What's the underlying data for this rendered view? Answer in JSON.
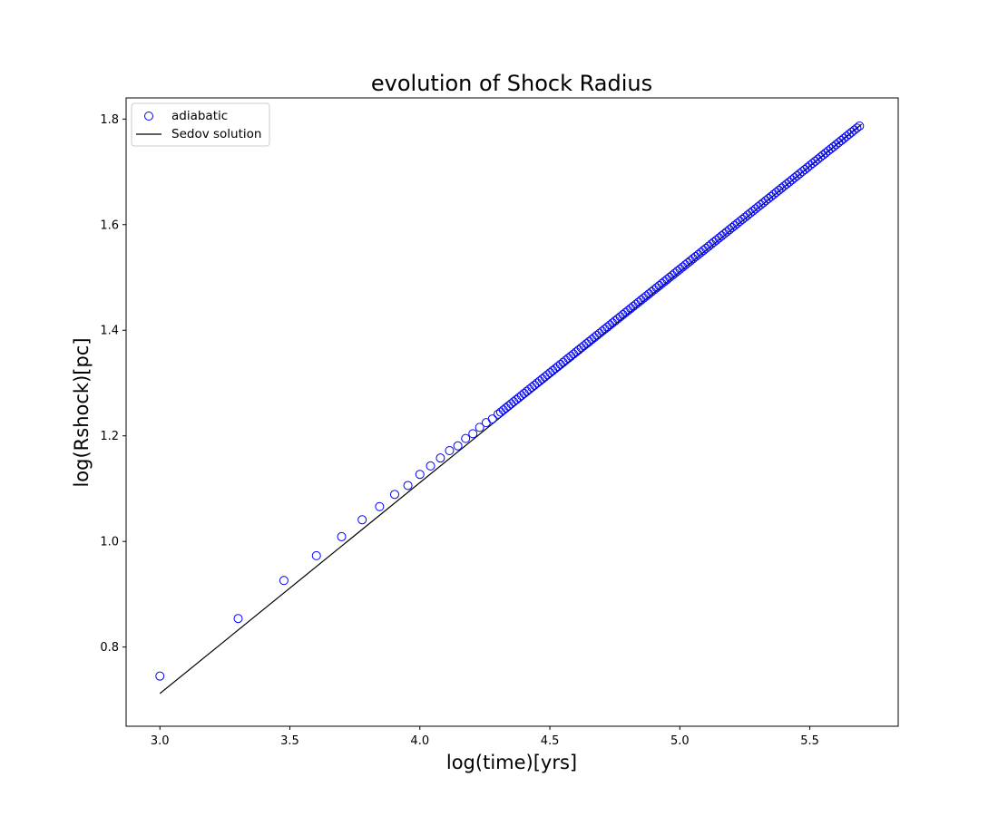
{
  "chart_data": {
    "type": "scatter",
    "title": "evolution of Shock Radius",
    "xlabel": "log(time)[yrs]",
    "ylabel": "log(Rshock)[pc]",
    "xlim": [
      2.87,
      5.84
    ],
    "ylim": [
      0.65,
      1.84
    ],
    "xticks": [
      "3.0",
      "3.5",
      "4.0",
      "4.5",
      "5.0",
      "5.5"
    ],
    "yticks": [
      "0.8",
      "1.0",
      "1.2",
      "1.4",
      "1.6",
      "1.8"
    ],
    "grid": false,
    "legend_position": "top-left",
    "series": [
      {
        "name": "adiabatic",
        "kind": "scatter",
        "marker": "open-circle",
        "color": "#0000ff",
        "sample_points": [
          [
            3.0,
            0.745
          ],
          [
            3.301,
            0.854
          ],
          [
            3.477,
            0.926
          ],
          [
            3.602,
            0.973
          ],
          [
            3.699,
            1.009
          ],
          [
            3.778,
            1.041
          ],
          [
            3.845,
            1.066
          ],
          [
            3.903,
            1.089
          ],
          [
            3.954,
            1.106
          ],
          [
            4.0,
            1.127
          ],
          [
            4.041,
            1.143
          ],
          [
            4.079,
            1.158
          ],
          [
            4.114,
            1.172
          ],
          [
            4.146,
            1.181
          ],
          [
            4.176,
            1.195
          ],
          [
            4.204,
            1.204
          ],
          [
            4.23,
            1.216
          ],
          [
            4.255,
            1.225
          ],
          [
            4.279,
            1.232
          ],
          [
            4.301,
            1.241
          ]
        ],
        "dense_start": 4.301,
        "dense_end": 5.699,
        "dense_step": 0.01
      },
      {
        "name": "Sedov solution",
        "kind": "line",
        "color": "#000000",
        "x": [
          3.0,
          5.699
        ],
        "y": [
          0.712,
          1.79
        ]
      }
    ]
  }
}
